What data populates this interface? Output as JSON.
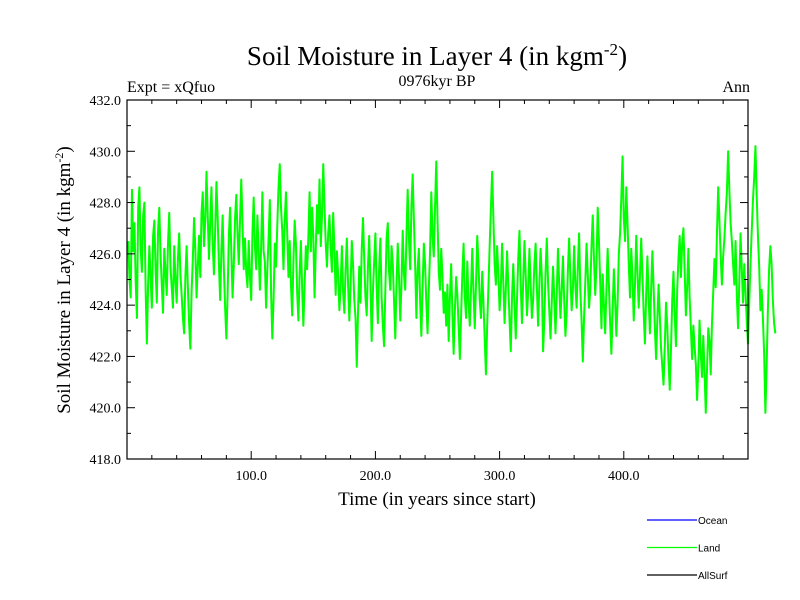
{
  "chart_data": {
    "type": "line",
    "title": "Soil Moisture in Layer 4 (in kgm",
    "title_sup": "-2",
    "title_close": ")",
    "subtitle": "0976kyr BP",
    "left_label": "Expt = xQfuo",
    "right_label": "Ann",
    "xlabel": "Time (in years since start)",
    "ylabel": "Soil Moisture in Layer 4 (in kgm",
    "ylabel_sup": "-2",
    "ylabel_close": ")",
    "xlim": [
      0,
      500
    ],
    "ylim": [
      418,
      432
    ],
    "xticks": [
      100,
      200,
      300,
      400
    ],
    "xtick_labels": [
      "100.0",
      "200.0",
      "300.0",
      "400.0"
    ],
    "yticks": [
      418,
      420,
      422,
      424,
      426,
      428,
      430,
      432
    ],
    "ytick_labels": [
      "418.0",
      "420.0",
      "422.0",
      "424.0",
      "426.0",
      "428.0",
      "430.0",
      "432.0"
    ],
    "legend": [
      {
        "name": "Ocean",
        "color": "#0000ff"
      },
      {
        "name": "Land",
        "color": "#00ff00"
      },
      {
        "name": "AllSurf",
        "color": "#000000"
      }
    ],
    "series": [
      {
        "name": "Land",
        "color": "#00ff00",
        "x_start": 1,
        "x_step": 1,
        "values": [
          426.5,
          425.0,
          424.3,
          428.5,
          426.1,
          427.2,
          424.9,
          423.5,
          427.8,
          428.6,
          426.2,
          425.3,
          427.5,
          428.0,
          424.6,
          422.5,
          424.8,
          426.3,
          425.1,
          423.9,
          426.7,
          427.3,
          425.4,
          424.1,
          426.9,
          427.8,
          426.0,
          424.8,
          423.7,
          426.2,
          425.3,
          424.4,
          426.4,
          427.6,
          425.5,
          424.7,
          423.9,
          426.3,
          425.0,
          424.1,
          425.8,
          426.8,
          425.2,
          424.4,
          423.5,
          422.9,
          425.1,
          426.3,
          424.7,
          423.3,
          422.3,
          424.5,
          425.8,
          427.4,
          426.2,
          424.3,
          425.5,
          426.7,
          425.1,
          427.6,
          428.4,
          426.3,
          427.3,
          429.2,
          427.5,
          425.8,
          427.2,
          428.6,
          426.4,
          425.2,
          426.9,
          428.8,
          427.4,
          425.6,
          424.2,
          426.1,
          427.5,
          425.4,
          423.9,
          422.7,
          424.4,
          426.7,
          427.8,
          426.1,
          424.3,
          425.6,
          427.4,
          428.3,
          426.8,
          425.6,
          427.3,
          428.9,
          427.2,
          425.4,
          426.6,
          425.3,
          424.7,
          426.5,
          425.1,
          424.2,
          426.8,
          428.2,
          426.3,
          425.4,
          427.5,
          426.1,
          424.6,
          426.3,
          428.4,
          426.1,
          425.7,
          423.9,
          425.4,
          426.6,
          428.1,
          424.5,
          422.7,
          424.2,
          426.4,
          425.5,
          427.1,
          428.6,
          429.5,
          427.8,
          426.9,
          425.4,
          427.3,
          428.4,
          426.8,
          425.1,
          426.5,
          424.8,
          423.6,
          425.7,
          427.3,
          426.4,
          424.5,
          423.4,
          425.2,
          426.5,
          424.7,
          423.2,
          424.8,
          426.3,
          425.4,
          426.6,
          428.4,
          426.1,
          427.8,
          426.7,
          424.3,
          426.2,
          427.9,
          426.8,
          428.9,
          426.3,
          427.5,
          429.5,
          427.9,
          426.4,
          425.5,
          426.8,
          427.5,
          426.2,
          425.3,
          427.6,
          426.2,
          424.4,
          426.1,
          425.2,
          423.8,
          424.7,
          426.3,
          424.5,
          423.7,
          425.4,
          426.6,
          424.8,
          423.4,
          424.7,
          426.5,
          425.6,
          424.2,
          423.5,
          421.6,
          423.7,
          425.5,
          424.1,
          426.2,
          427.4,
          425.8,
          424.3,
          423.6,
          425.5,
          426.7,
          424.9,
          422.6,
          424.5,
          425.7,
          426.8,
          424.7,
          423.3,
          425.4,
          426.6,
          424.3,
          423.2,
          422.4,
          424.6,
          426.6,
          427.2,
          425.3,
          424.6,
          426.3,
          425.6,
          424.2,
          422.7,
          424.8,
          426.4,
          425.1,
          423.4,
          424.8,
          426.9,
          425.2,
          424.6,
          426.7,
          428.5,
          426.6,
          425.4,
          427.8,
          429.1,
          427.3,
          425.6,
          423.5,
          425.4,
          426.2,
          424.2,
          422.8,
          424.7,
          426.4,
          425.6,
          424.1,
          422.9,
          424.6,
          426.1,
          428.4,
          426.7,
          425.9,
          427.8,
          429.6,
          427.4,
          425.3,
          424.6,
          426.2,
          425.1,
          423.7,
          424.5,
          423.2,
          424.8,
          422.6,
          424.3,
          425.6,
          423.7,
          422.1,
          423.8,
          425.1,
          424.4,
          423.2,
          421.9,
          423.6,
          425.2,
          426.4,
          424.3,
          423.5,
          425.7,
          424.1,
          423.2,
          424.6,
          426.2,
          424.5,
          423.1,
          424.8,
          426.7,
          425.6,
          424.2,
          423.5,
          425.3,
          424.1,
          422.7,
          421.3,
          423.2,
          424.7,
          426.3,
          427.8,
          429.2,
          427.4,
          425.6,
          424.8,
          426.3,
          425.2,
          423.8,
          424.7,
          426.4,
          424.9,
          423.3,
          424.6,
          426.1,
          424.8,
          423.4,
          422.2,
          424.3,
          425.6,
          424.1,
          422.7,
          424.2,
          425.8,
          426.9,
          424.8,
          423.3,
          424.9,
          426.5,
          425.2,
          423.6,
          424.5,
          426.2,
          424.8,
          423.5,
          424.2,
          425.6,
          426.4,
          424.7,
          423.2,
          424.8,
          426.2,
          425.1,
          422.2,
          423.4,
          425.3,
          426.6,
          424.9,
          423.8,
          422.7,
          424.1,
          425.5,
          424.3,
          422.9,
          424.4,
          426.2,
          424.8,
          423.5,
          424.6,
          425.9,
          424.2,
          422.8,
          423.7,
          425.4,
          426.6,
          425.1,
          423.8,
          424.6,
          426.3,
          424.8,
          423.9,
          425.5,
          426.8,
          424.6,
          423.4,
          421.8,
          423.5,
          424.9,
          426.4,
          425.2,
          423.9,
          424.6,
          426.3,
          427.5,
          425.8,
          424.4,
          425.6,
          427.8,
          426.5,
          424.9,
          423.1,
          425.2,
          424.0,
          422.9,
          424.6,
          426.2,
          424.8,
          423.3,
          422.1,
          423.8,
          425.4,
          424.2,
          422.8,
          424.1,
          426.0,
          426.8,
          428.2,
          429.8,
          427.4,
          426.5,
          428.6,
          427.2,
          425.6,
          424.3,
          426.2,
          425.1,
          423.4,
          424.8,
          426.7,
          425.3,
          423.9,
          425.1,
          426.6,
          425.2,
          423.7,
          422.5,
          424.4,
          425.9,
          424.3,
          422.9,
          424.6,
          426.1,
          424.7,
          423.1,
          421.9,
          423.4,
          424.8,
          423.6,
          422.3,
          421.6,
          420.9,
          422.4,
          424.1,
          423.2,
          421.8,
          420.7,
          422.3,
          424.2,
          425.3,
          423.6,
          422.4,
          424.6,
          425.8,
          426.7,
          425.1,
          426.4,
          427.0,
          425.3,
          423.6,
          424.7,
          426.2,
          424.3,
          423.1,
          421.9,
          423.2,
          422.4,
          421.7,
          420.3,
          421.6,
          423.4,
          422.1,
          421.2,
          422.8,
          421.4,
          419.8,
          421.5,
          423.1,
          422.6,
          421.3,
          423.3,
          424.5,
          425.8,
          424.7,
          426.8,
          428.6,
          427.3,
          425.9,
          424.8,
          425.9,
          426.6,
          427.6,
          428.4,
          430.0,
          428.5,
          427.2,
          426.5,
          425.6,
          424.8,
          426.5,
          424.4,
          423.1,
          424.9,
          426.8,
          425.4,
          424.1,
          425.6,
          424.5,
          423.4,
          422.5,
          424.1,
          425.6,
          426.9,
          428.1,
          429.0,
          430.2,
          428.3,
          426.7,
          425.5,
          423.8,
          424.6,
          423.5,
          422.1,
          419.8,
          421.6,
          423.8,
          425.4,
          426.3,
          425.6,
          424.2,
          423.3,
          422.9
        ]
      }
    ]
  }
}
